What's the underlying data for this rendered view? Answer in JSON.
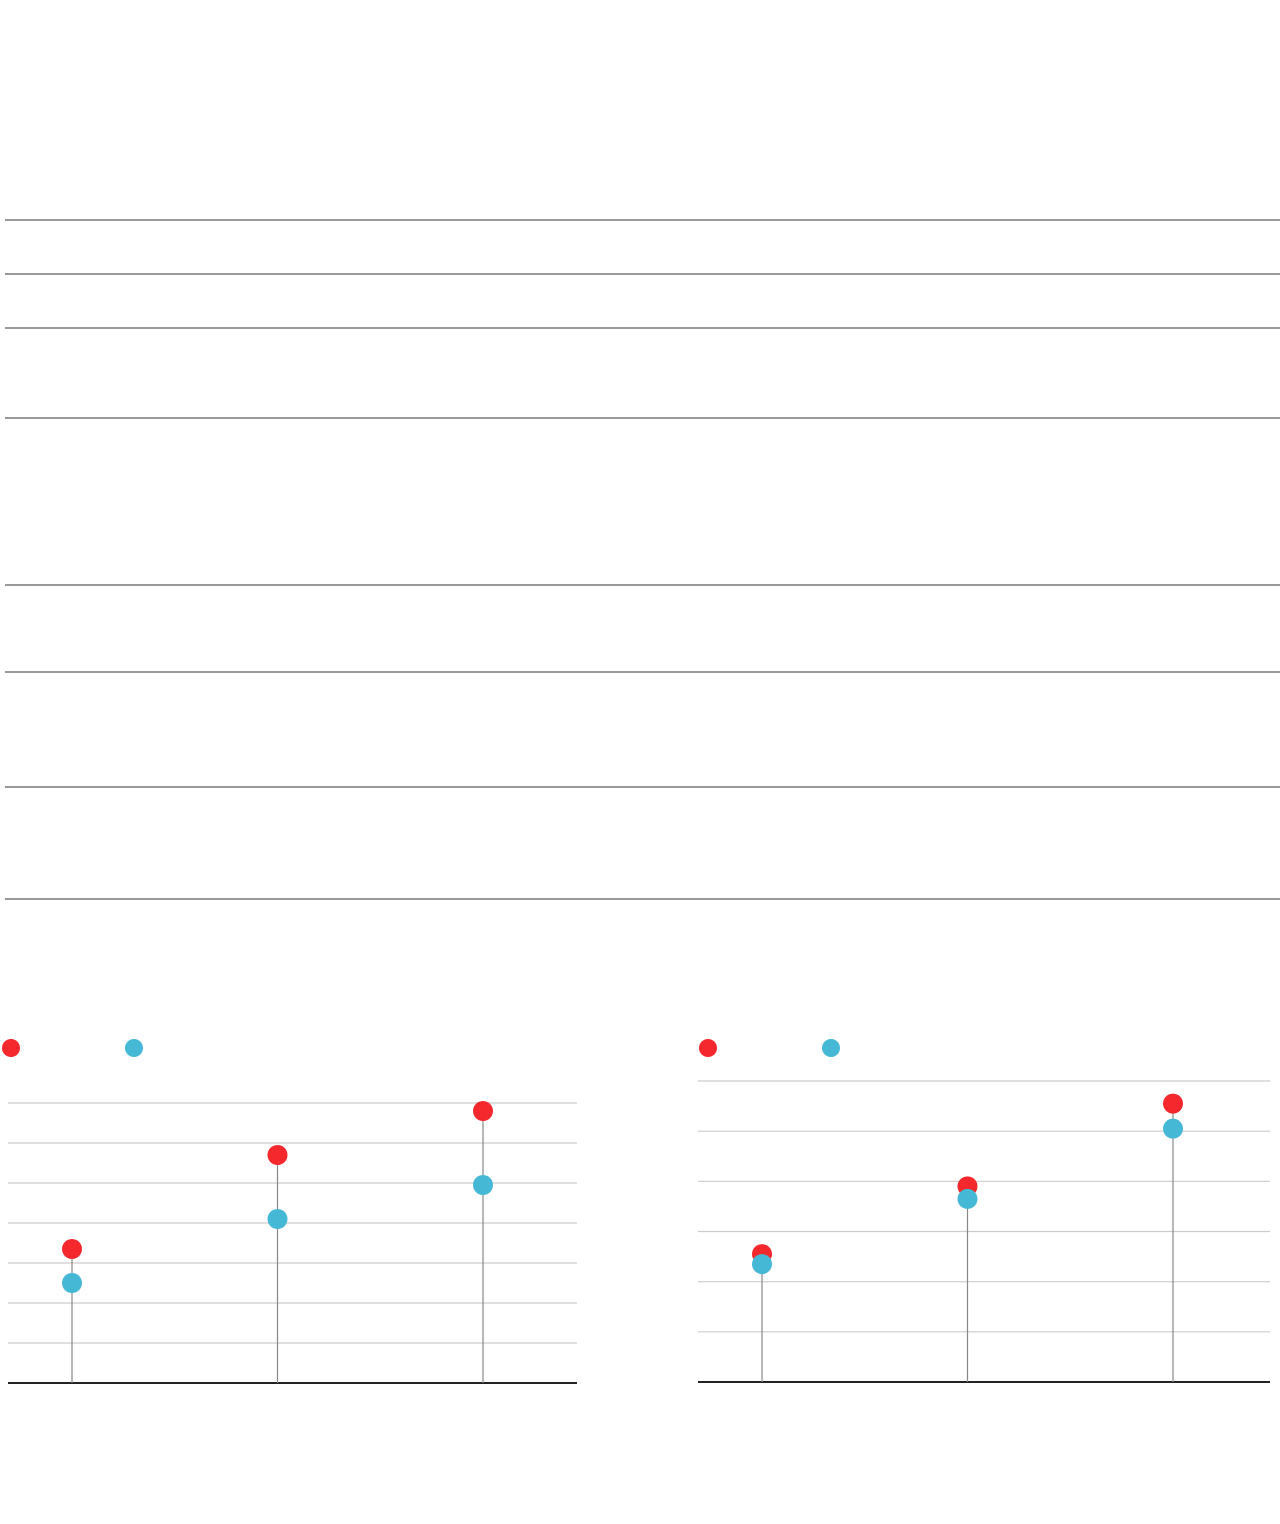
{
  "chart_data": [
    {
      "type": "lollipop",
      "categories": [
        null,
        null,
        null
      ],
      "ylim": [
        0,
        7
      ],
      "yticks": [
        0,
        1,
        2,
        3,
        4,
        5,
        6,
        7
      ],
      "grid": true,
      "series": [
        {
          "color": "#f4282d",
          "values": [
            3.35,
            5.7,
            6.8
          ]
        },
        {
          "color": "#45b8d6",
          "values": [
            2.5,
            4.1,
            4.95
          ]
        }
      ]
    },
    {
      "type": "lollipop",
      "categories": [
        null,
        null,
        null
      ],
      "ylim": [
        0,
        6
      ],
      "yticks": [
        0,
        1,
        2,
        3,
        4,
        5,
        6
      ],
      "grid": true,
      "series": [
        {
          "color": "#f4282d",
          "values": [
            2.55,
            3.9,
            5.55
          ]
        },
        {
          "color": "#45b8d6",
          "values": [
            2.35,
            3.65,
            5.05
          ]
        }
      ]
    }
  ]
}
